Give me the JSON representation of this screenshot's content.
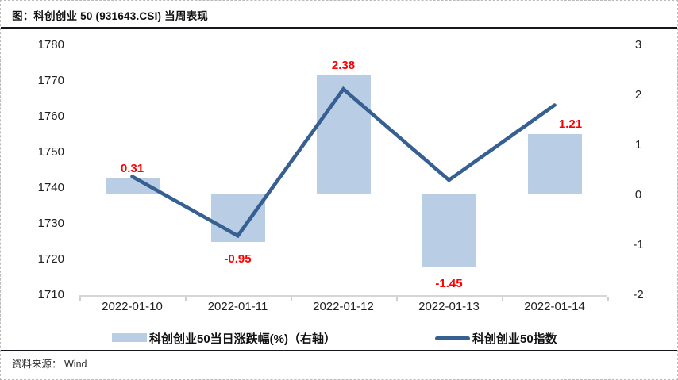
{
  "page": {
    "title": "图：科创创业 50 (931643.CSI) 当周表现",
    "source_label": "资料来源：",
    "source_value": "Wind"
  },
  "chart_data": {
    "type": "combo-bar-line",
    "title": "图：科创创业 50 (931643.CSI) 当周表现",
    "categories": [
      "2022-01-10",
      "2022-01-11",
      "2022-01-12",
      "2022-01-13",
      "2022-01-14"
    ],
    "series": [
      {
        "name": "科创创业50当日涨跌幅(%)（右轴）",
        "type": "bar",
        "axis": "right",
        "values": [
          0.31,
          -0.95,
          2.38,
          -1.45,
          1.21
        ],
        "data_labels": [
          "0.31",
          "-0.95",
          "2.38",
          "-1.45",
          "1.21"
        ],
        "color": "#b9cde4",
        "label_color": "#ff0000"
      },
      {
        "name": "科创创业50指数",
        "type": "line",
        "axis": "left",
        "values": [
          1743,
          1726.4,
          1767.5,
          1742,
          1763
        ],
        "color": "#376092"
      }
    ],
    "left_axis": {
      "min": 1710,
      "max": 1780,
      "ticks": [
        1780,
        1770,
        1760,
        1750,
        1740,
        1730,
        1720,
        1710
      ]
    },
    "right_axis": {
      "min": -2,
      "max": 3,
      "ticks": [
        3,
        2,
        1,
        0,
        -1,
        -2
      ]
    },
    "grid": false,
    "legend_position": "bottom",
    "source": "资料来源：Wind"
  }
}
